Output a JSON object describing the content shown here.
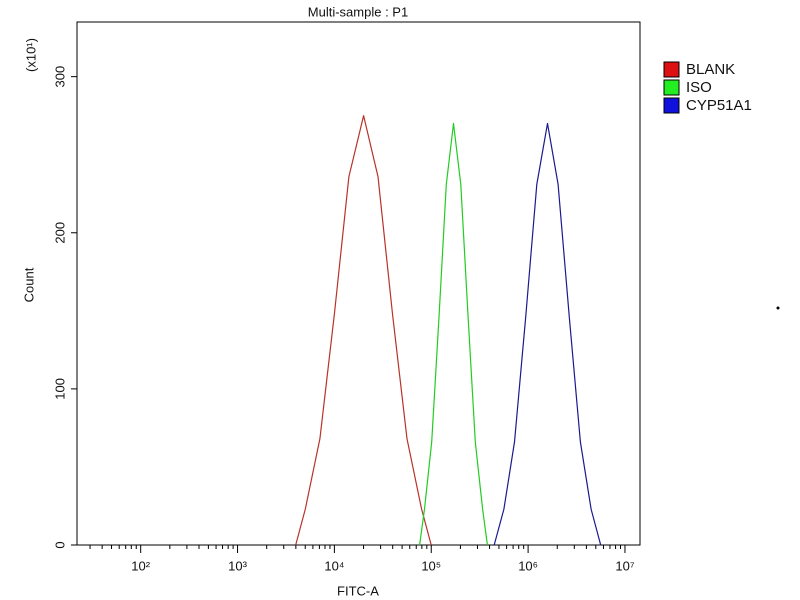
{
  "chart_data": {
    "type": "line",
    "title": "Multi-sample : P1",
    "xlabel": "FITC-A",
    "ylabel": "Count",
    "yscale_label": "(x10¹)",
    "log_x": true,
    "xlim": [
      22,
      14300000
    ],
    "xticks": [
      {
        "value": 100,
        "label": "10²"
      },
      {
        "value": 1000,
        "label": "10³"
      },
      {
        "value": 10000,
        "label": "10⁴"
      },
      {
        "value": 100000,
        "label": "10⁵"
      },
      {
        "value": 1000000,
        "label": "10⁶"
      },
      {
        "value": 10000000,
        "label": "10⁷"
      }
    ],
    "ylim": [
      0,
      335
    ],
    "yticks": [
      0,
      100,
      200,
      300
    ],
    "legend": "right-top",
    "series": [
      {
        "name": "BLANK",
        "color": "#b8322a",
        "legend_color": "#dd1111",
        "x": [
          3981,
          5012,
          7079,
          10000,
          14125,
          20000,
          28184,
          39811,
          56234,
          79433,
          100000
        ],
        "values": [
          0,
          23,
          68,
          148,
          236,
          275,
          236,
          148,
          68,
          23,
          0
        ]
      },
      {
        "name": "ISO",
        "color": "#22cc22",
        "legend_color": "#22ee22",
        "x": [
          75858,
          85114,
          101158,
          120226,
          142889,
          169824,
          201837,
          239883,
          285102,
          338844,
          380189
        ],
        "values": [
          0,
          23,
          66,
          146,
          231,
          270,
          231,
          146,
          66,
          23,
          0
        ]
      },
      {
        "name": "CYP51A1",
        "color": "#1a1a8c",
        "legend_color": "#1111dd",
        "x": [
          446684,
          562341,
          724436,
          944061,
          1230269,
          1584893,
          2041738,
          2660725,
          3467369,
          4466836,
          5623413
        ],
        "values": [
          0,
          23,
          66,
          146,
          231,
          270,
          231,
          146,
          66,
          23,
          0
        ]
      }
    ]
  }
}
